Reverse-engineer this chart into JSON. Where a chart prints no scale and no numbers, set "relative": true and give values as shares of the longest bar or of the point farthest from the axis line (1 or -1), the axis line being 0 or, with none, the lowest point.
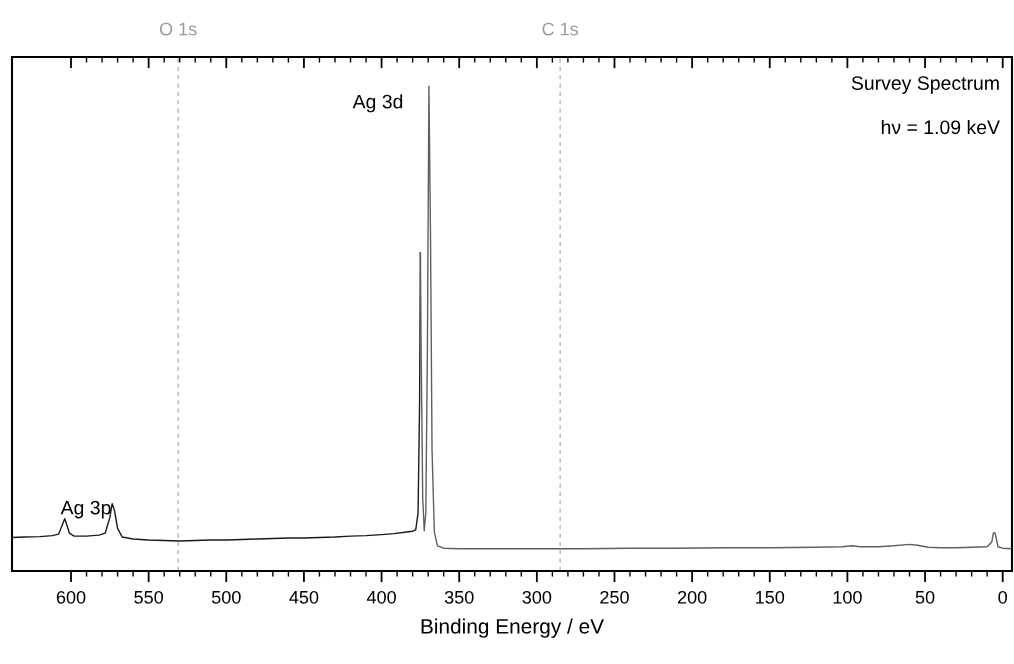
{
  "chart_data": {
    "type": "line",
    "relative": true,
    "xlabel": "Binding Energy / eV",
    "xlim": [
      638,
      -6
    ],
    "xticks": [
      600,
      {
        "value": 590,
        "label": null
      },
      {
        "value": 580,
        "label": null
      },
      {
        "value": 570,
        "label": null
      },
      {
        "value": 560,
        "label": null
      },
      550,
      {
        "value": 540,
        "label": null
      },
      {
        "value": 530,
        "label": null
      },
      {
        "value": 520,
        "label": null
      },
      {
        "value": 510,
        "label": null
      },
      500,
      {
        "value": 490,
        "label": null
      },
      {
        "value": 480,
        "label": null
      },
      {
        "value": 470,
        "label": null
      },
      {
        "value": 460,
        "label": null
      },
      450,
      {
        "value": 440,
        "label": null
      },
      {
        "value": 430,
        "label": null
      },
      {
        "value": 420,
        "label": null
      },
      {
        "value": 410,
        "label": null
      },
      400,
      {
        "value": 390,
        "label": null
      },
      {
        "value": 380,
        "label": null
      },
      {
        "value": 370,
        "label": null
      },
      {
        "value": 360,
        "label": null
      },
      350,
      {
        "value": 340,
        "label": null
      },
      {
        "value": 330,
        "label": null
      },
      {
        "value": 320,
        "label": null
      },
      {
        "value": 310,
        "label": null
      },
      300,
      {
        "value": 290,
        "label": null
      },
      {
        "value": 280,
        "label": null
      },
      {
        "value": 270,
        "label": null
      },
      {
        "value": 260,
        "label": null
      },
      250,
      {
        "value": 240,
        "label": null
      },
      {
        "value": 230,
        "label": null
      },
      {
        "value": 220,
        "label": null
      },
      {
        "value": 210,
        "label": null
      },
      200,
      {
        "value": 190,
        "label": null
      },
      {
        "value": 180,
        "label": null
      },
      {
        "value": 170,
        "label": null
      },
      {
        "value": 160,
        "label": null
      },
      150,
      {
        "value": 140,
        "label": null
      },
      {
        "value": 130,
        "label": null
      },
      {
        "value": 120,
        "label": null
      },
      {
        "value": 110,
        "label": null
      },
      100,
      {
        "value": 90,
        "label": null
      },
      {
        "value": 80,
        "label": null
      },
      {
        "value": 70,
        "label": null
      },
      {
        "value": 60,
        "label": null
      },
      50,
      {
        "value": 40,
        "label": null
      },
      {
        "value": 30,
        "label": null
      },
      {
        "value": 20,
        "label": null
      },
      {
        "value": 10,
        "label": null
      },
      0
    ],
    "tick_labels": "x",
    "grid": false,
    "marker": "none",
    "line_style": "solid",
    "series": [
      {
        "color": "#1a1a1a",
        "x": [
          638,
          630,
          620,
          612,
          608,
          605,
          604,
          603,
          601,
          598,
          590,
          582,
          578,
          575,
          573.5,
          572,
          570,
          567,
          560,
          550,
          540,
          530,
          520,
          510,
          500,
          490,
          480,
          470,
          460,
          450,
          440,
          430,
          420,
          410,
          400,
          392,
          385,
          380,
          378,
          376.5,
          375.5,
          375
        ],
        "values": [
          0.069,
          0.07,
          0.071,
          0.073,
          0.076,
          0.1,
          0.108,
          0.098,
          0.078,
          0.072,
          0.072,
          0.074,
          0.078,
          0.11,
          0.139,
          0.125,
          0.088,
          0.07,
          0.066,
          0.064,
          0.063,
          0.062,
          0.063,
          0.064,
          0.064,
          0.065,
          0.066,
          0.067,
          0.068,
          0.068,
          0.069,
          0.07,
          0.072,
          0.073,
          0.075,
          0.077,
          0.08,
          0.082,
          0.085,
          0.12,
          0.35,
          0.656
        ]
      },
      {
        "color": "#5f5f5f",
        "x": [
          375,
          374.5,
          373.5,
          372.5,
          371.5,
          370.5,
          369.5,
          368.5,
          367.5,
          366,
          364,
          360,
          350,
          330,
          300,
          270,
          240,
          210,
          180,
          150,
          120,
          103,
          97,
          92,
          80,
          70,
          60,
          55,
          48,
          40,
          30,
          20,
          10,
          7,
          6,
          5,
          4,
          3,
          0,
          -6
        ],
        "values": [
          0.656,
          0.45,
          0.15,
          0.083,
          0.12,
          0.45,
          1.0,
          0.7,
          0.25,
          0.08,
          0.052,
          0.047,
          0.046,
          0.046,
          0.046,
          0.046,
          0.047,
          0.047,
          0.048,
          0.048,
          0.049,
          0.05,
          0.052,
          0.05,
          0.05,
          0.052,
          0.055,
          0.053,
          0.049,
          0.048,
          0.048,
          0.049,
          0.05,
          0.06,
          0.078,
          0.079,
          0.065,
          0.05,
          0.047,
          0.046
        ]
      }
    ],
    "ref_lines": [
      {
        "axis": "x",
        "value": 531,
        "label": "O 1s",
        "color": "#b4b4b4",
        "line_style": "dashed"
      },
      {
        "axis": "x",
        "value": 285,
        "label": "C 1s",
        "color": "#b4b4b4",
        "line_style": "dashed"
      }
    ],
    "annotations": [
      "Ag 3d",
      "Ag 3p",
      "Survey Spectrum",
      "hν = 1.09 keV"
    ]
  }
}
